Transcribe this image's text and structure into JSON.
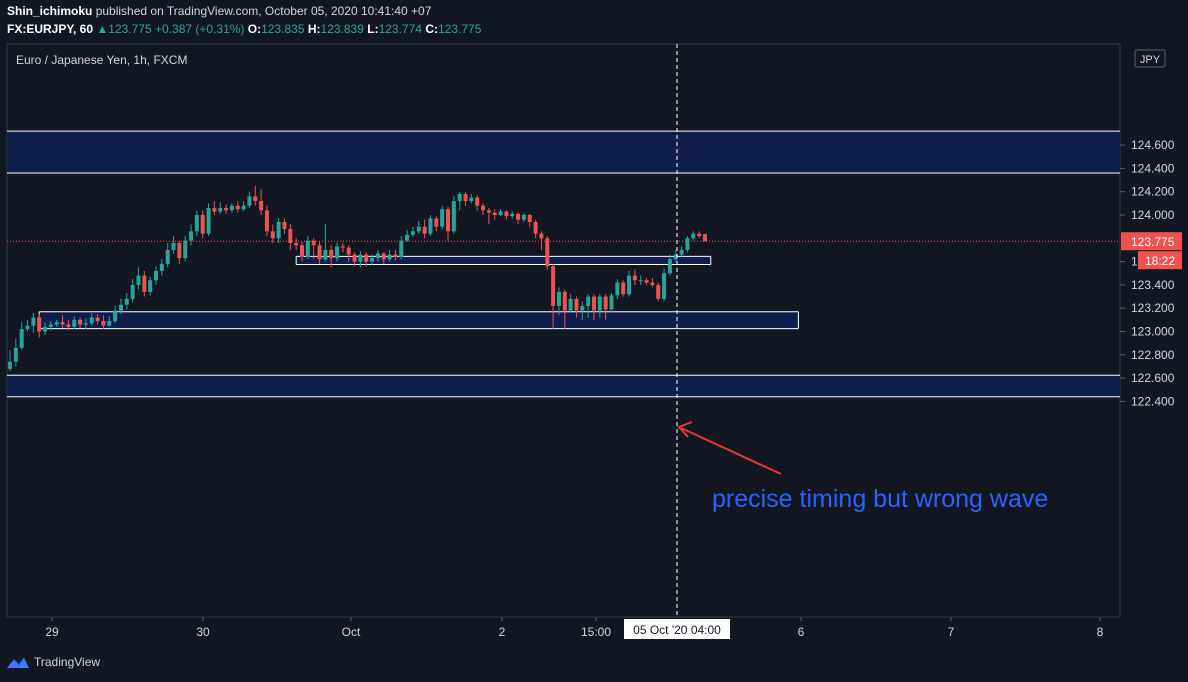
{
  "header": {
    "publisher": "Shin_ichimoku",
    "published_text": "published on TradingView.com, October 05, 2020 10:41:40 +07",
    "symbol": "FX:EURJPY, 60",
    "last": "123.775",
    "change": "+0.387 (+0.31%)",
    "o_label": "O:",
    "o_value": "123.835",
    "h_label": "H:",
    "h_value": "123.839",
    "l_label": "L:",
    "l_value": "123.774",
    "c_label": "C:",
    "c_value": "123.775"
  },
  "chart_title": "Euro / Japanese Yen, 1h, FXCM",
  "currency_label": "JPY",
  "footer_brand": "TradingView",
  "colors": {
    "background": "#131722",
    "up": "#26a69a",
    "down": "#ef5350",
    "zone_fill": "#0f1e4a",
    "annotation_text": "#2962ff",
    "arrow": "#e53935"
  },
  "chart_data": {
    "type": "candlestick",
    "x_ticks": [
      "29",
      "30",
      "Oct",
      "2",
      "15:00",
      "6",
      "7",
      "8"
    ],
    "cursor_x_label": "05 Oct '20   04:00",
    "y_ticks": [
      "124.600",
      "124.400",
      "124.200",
      "124.000",
      "123.600",
      "123.400",
      "123.200",
      "123.000",
      "122.800",
      "122.600",
      "122.400"
    ],
    "ylim": [
      122.3,
      124.72
    ],
    "last_price": 123.775,
    "last_price_label": "123.775",
    "countdown_label": "18:22",
    "annotation": "precise timing but wrong wave",
    "zones": [
      {
        "y1": 124.36,
        "y2": 124.72,
        "x_start_bar": -1,
        "x_end_bar": "edge"
      },
      {
        "y1": 123.575,
        "y2": 123.645,
        "x_start_bar": 49,
        "x_end_bar": 120
      },
      {
        "y1": 123.025,
        "y2": 123.17,
        "x_start_bar": 5,
        "x_end_bar": 135
      },
      {
        "y1": 122.44,
        "y2": 122.625,
        "x_start_bar": -1,
        "x_end_bar": "edge"
      }
    ],
    "candles": [
      [
        122.74,
        122.68,
        122.84,
        122.66
      ],
      [
        122.86,
        122.74,
        122.94,
        122.7
      ],
      [
        123.02,
        122.86,
        123.08,
        122.84
      ],
      [
        123.05,
        123.02,
        123.1,
        123.0
      ],
      [
        123.12,
        123.05,
        123.16,
        122.99
      ],
      [
        123.0,
        123.12,
        123.15,
        122.95
      ],
      [
        123.04,
        123.0,
        123.08,
        122.97
      ],
      [
        123.06,
        123.04,
        123.09,
        123.01
      ],
      [
        123.08,
        123.06,
        123.1,
        123.04
      ],
      [
        123.06,
        123.08,
        123.14,
        123.03
      ],
      [
        123.04,
        123.06,
        123.1,
        123.01
      ],
      [
        123.1,
        123.04,
        123.13,
        123.02
      ],
      [
        123.06,
        123.1,
        123.12,
        123.03
      ],
      [
        123.07,
        123.06,
        123.11,
        123.02
      ],
      [
        123.12,
        123.07,
        123.16,
        123.05
      ],
      [
        123.09,
        123.12,
        123.15,
        123.06
      ],
      [
        123.05,
        123.09,
        123.14,
        123.02
      ],
      [
        123.09,
        123.05,
        123.13,
        123.04
      ],
      [
        123.18,
        123.09,
        123.22,
        123.07
      ],
      [
        123.23,
        123.18,
        123.28,
        123.15
      ],
      [
        123.28,
        123.23,
        123.33,
        123.19
      ],
      [
        123.4,
        123.28,
        123.45,
        123.25
      ],
      [
        123.48,
        123.4,
        123.55,
        123.36
      ],
      [
        123.34,
        123.48,
        123.52,
        123.3
      ],
      [
        123.44,
        123.34,
        123.47,
        123.31
      ],
      [
        123.52,
        123.44,
        123.56,
        123.4
      ],
      [
        123.58,
        123.52,
        123.62,
        123.48
      ],
      [
        123.7,
        123.58,
        123.76,
        123.55
      ],
      [
        123.76,
        123.7,
        123.82,
        123.67
      ],
      [
        123.63,
        123.76,
        123.78,
        123.58
      ],
      [
        123.78,
        123.63,
        123.82,
        123.6
      ],
      [
        123.86,
        123.78,
        123.92,
        123.74
      ],
      [
        124.0,
        123.86,
        124.04,
        123.82
      ],
      [
        123.84,
        124.0,
        124.04,
        123.8
      ],
      [
        124.06,
        123.84,
        124.1,
        123.82
      ],
      [
        124.03,
        124.06,
        124.12,
        124.0
      ],
      [
        124.06,
        124.03,
        124.11,
        124.01
      ],
      [
        124.04,
        124.06,
        124.09,
        124.01
      ],
      [
        124.08,
        124.04,
        124.1,
        124.02
      ],
      [
        124.05,
        124.08,
        124.12,
        124.02
      ],
      [
        124.08,
        124.05,
        124.12,
        124.03
      ],
      [
        124.16,
        124.08,
        124.2,
        124.06
      ],
      [
        124.12,
        124.16,
        124.25,
        124.08
      ],
      [
        124.04,
        124.12,
        124.22,
        124.0
      ],
      [
        123.86,
        124.04,
        124.08,
        123.82
      ],
      [
        123.8,
        123.86,
        123.92,
        123.76
      ],
      [
        123.94,
        123.8,
        123.97,
        123.76
      ],
      [
        123.88,
        123.94,
        123.97,
        123.84
      ],
      [
        123.76,
        123.88,
        123.92,
        123.7
      ],
      [
        123.74,
        123.76,
        123.8,
        123.7
      ],
      [
        123.64,
        123.74,
        123.77,
        123.6
      ],
      [
        123.78,
        123.64,
        123.82,
        123.62
      ],
      [
        123.74,
        123.78,
        123.8,
        123.62
      ],
      [
        123.62,
        123.74,
        123.78,
        123.58
      ],
      [
        123.7,
        123.62,
        123.92,
        123.6
      ],
      [
        123.63,
        123.7,
        123.74,
        123.55
      ],
      [
        123.73,
        123.63,
        123.76,
        123.6
      ],
      [
        123.72,
        123.73,
        123.76,
        123.68
      ],
      [
        123.66,
        123.72,
        123.74,
        123.6
      ],
      [
        123.6,
        123.66,
        123.68,
        123.56
      ],
      [
        123.66,
        123.6,
        123.69,
        123.55
      ],
      [
        123.6,
        123.66,
        123.68,
        123.56
      ],
      [
        123.63,
        123.6,
        123.66,
        123.57
      ],
      [
        123.67,
        123.63,
        123.7,
        123.6
      ],
      [
        123.62,
        123.67,
        123.68,
        123.58
      ],
      [
        123.66,
        123.62,
        123.7,
        123.6
      ],
      [
        123.64,
        123.66,
        123.7,
        123.61
      ],
      [
        123.78,
        123.64,
        123.82,
        123.62
      ],
      [
        123.83,
        123.78,
        123.87,
        123.77
      ],
      [
        123.86,
        123.83,
        123.9,
        123.81
      ],
      [
        123.9,
        123.86,
        123.95,
        123.84
      ],
      [
        123.84,
        123.9,
        123.96,
        123.8
      ],
      [
        123.97,
        123.84,
        124.0,
        123.82
      ],
      [
        123.9,
        123.97,
        123.99,
        123.86
      ],
      [
        124.05,
        123.9,
        124.08,
        123.88
      ],
      [
        123.86,
        124.05,
        124.07,
        123.78
      ],
      [
        124.12,
        123.86,
        124.16,
        123.84
      ],
      [
        124.18,
        124.12,
        124.2,
        124.04
      ],
      [
        124.12,
        124.18,
        124.2,
        124.08
      ],
      [
        124.15,
        124.12,
        124.18,
        124.1
      ],
      [
        124.08,
        124.15,
        124.17,
        124.04
      ],
      [
        124.04,
        124.08,
        124.1,
        124.0
      ],
      [
        124.02,
        124.04,
        124.06,
        123.92
      ],
      [
        124.0,
        124.02,
        124.05,
        123.96
      ],
      [
        124.03,
        124.0,
        124.05,
        123.99
      ],
      [
        123.99,
        124.03,
        124.04,
        123.96
      ],
      [
        124.01,
        123.99,
        124.03,
        123.97
      ],
      [
        123.96,
        124.01,
        124.02,
        123.92
      ],
      [
        124.0,
        123.96,
        124.02,
        123.94
      ],
      [
        123.94,
        124.0,
        124.01,
        123.9
      ],
      [
        123.84,
        123.94,
        123.96,
        123.8
      ],
      [
        123.8,
        123.84,
        123.86,
        123.7
      ],
      [
        123.56,
        123.8,
        123.82,
        123.53
      ],
      [
        123.22,
        123.56,
        123.58,
        123.02
      ],
      [
        123.34,
        123.22,
        123.38,
        123.14
      ],
      [
        123.18,
        123.34,
        123.36,
        123.02
      ],
      [
        123.28,
        123.18,
        123.32,
        123.16
      ],
      [
        123.18,
        123.28,
        123.3,
        123.12
      ],
      [
        123.22,
        123.18,
        123.26,
        123.1
      ],
      [
        123.3,
        123.22,
        123.32,
        123.12
      ],
      [
        123.18,
        123.3,
        123.32,
        123.1
      ],
      [
        123.3,
        123.18,
        123.32,
        123.12
      ],
      [
        123.19,
        123.3,
        123.32,
        123.1
      ],
      [
        123.31,
        123.19,
        123.33,
        123.16
      ],
      [
        123.42,
        123.31,
        123.45,
        123.28
      ],
      [
        123.32,
        123.42,
        123.44,
        123.3
      ],
      [
        123.48,
        123.32,
        123.52,
        123.3
      ],
      [
        123.44,
        123.48,
        123.53,
        123.4
      ],
      [
        123.44,
        123.44,
        123.48,
        123.4
      ],
      [
        123.42,
        123.44,
        123.46,
        123.4
      ],
      [
        123.4,
        123.42,
        123.46,
        123.38
      ],
      [
        123.28,
        123.4,
        123.42,
        123.26
      ],
      [
        123.5,
        123.28,
        123.54,
        123.26
      ],
      [
        123.62,
        123.5,
        123.66,
        123.48
      ],
      [
        123.66,
        123.62,
        123.7,
        123.6
      ],
      [
        123.7,
        123.66,
        123.73,
        123.64
      ],
      [
        123.8,
        123.7,
        123.82,
        123.68
      ],
      [
        123.84,
        123.8,
        123.86,
        123.78
      ],
      [
        123.82,
        123.84,
        123.86,
        123.8
      ],
      [
        123.775,
        123.835,
        123.839,
        123.774
      ]
    ]
  }
}
